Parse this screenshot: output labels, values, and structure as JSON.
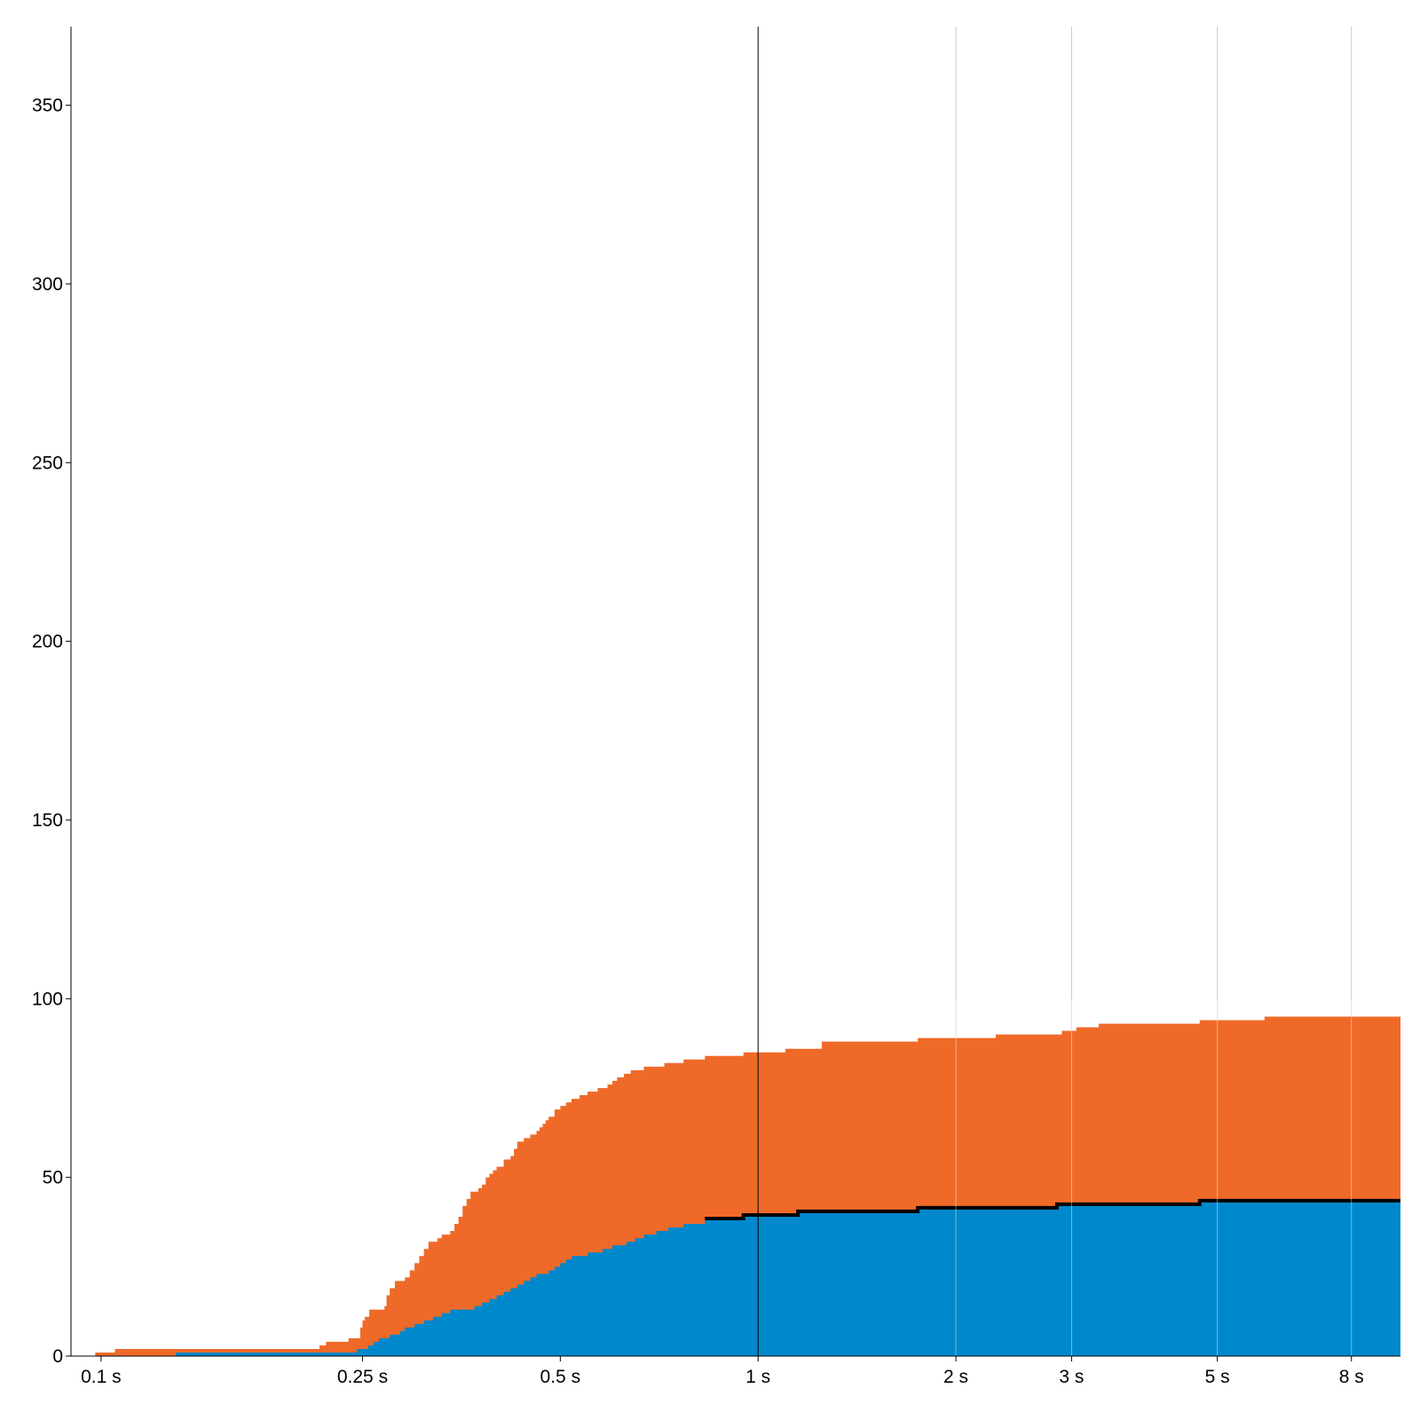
{
  "chart_data": {
    "type": "area",
    "x_scale": "log",
    "x_unit": "s",
    "xlim": [
      0.09,
      9.5
    ],
    "ylim": [
      0,
      372
    ],
    "grid": true,
    "y_ticks": [
      0,
      50,
      100,
      150,
      200,
      250,
      300,
      350
    ],
    "y_tick_labels": [
      "0",
      "50",
      "100",
      "150",
      "200",
      "250",
      "300",
      "350"
    ],
    "x_ticks": [
      0.1,
      0.25,
      0.5,
      1,
      2,
      3,
      5,
      8
    ],
    "x_tick_labels": [
      "0.1 s",
      "0.25 s",
      "0.5 s",
      "1 s",
      "2 s",
      "3 s",
      "5 s",
      "8 s"
    ],
    "highlight_x": 1,
    "series": [
      {
        "color": "#0088cc",
        "points": [
          [
            0.098,
            0
          ],
          [
            0.13,
            1
          ],
          [
            0.245,
            2
          ],
          [
            0.255,
            3
          ],
          [
            0.26,
            4
          ],
          [
            0.265,
            5
          ],
          [
            0.275,
            6
          ],
          [
            0.285,
            7
          ],
          [
            0.29,
            8
          ],
          [
            0.3,
            9
          ],
          [
            0.31,
            10
          ],
          [
            0.32,
            11
          ],
          [
            0.33,
            12
          ],
          [
            0.34,
            13
          ],
          [
            0.37,
            14
          ],
          [
            0.38,
            15
          ],
          [
            0.39,
            16
          ],
          [
            0.4,
            17
          ],
          [
            0.41,
            18
          ],
          [
            0.42,
            19
          ],
          [
            0.43,
            20
          ],
          [
            0.44,
            21
          ],
          [
            0.45,
            22
          ],
          [
            0.46,
            23
          ],
          [
            0.48,
            24
          ],
          [
            0.49,
            25
          ],
          [
            0.5,
            26
          ],
          [
            0.51,
            27
          ],
          [
            0.52,
            28
          ],
          [
            0.55,
            29
          ],
          [
            0.58,
            30
          ],
          [
            0.6,
            31
          ],
          [
            0.63,
            32
          ],
          [
            0.65,
            33
          ],
          [
            0.67,
            34
          ],
          [
            0.7,
            35
          ],
          [
            0.73,
            36
          ],
          [
            0.77,
            37
          ],
          [
            0.83,
            38
          ],
          [
            0.95,
            39
          ],
          [
            1.15,
            40
          ],
          [
            1.75,
            41
          ],
          [
            2.85,
            42
          ],
          [
            4.7,
            43
          ],
          [
            9.5,
            43
          ]
        ]
      },
      {
        "color": "#ef6a28",
        "points": [
          [
            0.098,
            1
          ],
          [
            0.105,
            2
          ],
          [
            0.215,
            3
          ],
          [
            0.22,
            4
          ],
          [
            0.238,
            5
          ],
          [
            0.248,
            8
          ],
          [
            0.25,
            10
          ],
          [
            0.252,
            11
          ],
          [
            0.256,
            13
          ],
          [
            0.27,
            14
          ],
          [
            0.272,
            17
          ],
          [
            0.275,
            19
          ],
          [
            0.28,
            21
          ],
          [
            0.29,
            22
          ],
          [
            0.295,
            24
          ],
          [
            0.3,
            26
          ],
          [
            0.305,
            28
          ],
          [
            0.31,
            30
          ],
          [
            0.315,
            32
          ],
          [
            0.325,
            33
          ],
          [
            0.33,
            34
          ],
          [
            0.34,
            35
          ],
          [
            0.345,
            37
          ],
          [
            0.35,
            39
          ],
          [
            0.355,
            42
          ],
          [
            0.36,
            44
          ],
          [
            0.365,
            46
          ],
          [
            0.375,
            47
          ],
          [
            0.38,
            48
          ],
          [
            0.385,
            50
          ],
          [
            0.39,
            51
          ],
          [
            0.395,
            52
          ],
          [
            0.4,
            53
          ],
          [
            0.41,
            55
          ],
          [
            0.42,
            56
          ],
          [
            0.425,
            58
          ],
          [
            0.43,
            60
          ],
          [
            0.44,
            61
          ],
          [
            0.45,
            62
          ],
          [
            0.46,
            63
          ],
          [
            0.465,
            64
          ],
          [
            0.47,
            65
          ],
          [
            0.475,
            66
          ],
          [
            0.48,
            67
          ],
          [
            0.49,
            69
          ],
          [
            0.5,
            70
          ],
          [
            0.51,
            71
          ],
          [
            0.52,
            72
          ],
          [
            0.535,
            73
          ],
          [
            0.55,
            74
          ],
          [
            0.57,
            75
          ],
          [
            0.59,
            76
          ],
          [
            0.6,
            77
          ],
          [
            0.61,
            78
          ],
          [
            0.625,
            79
          ],
          [
            0.64,
            80
          ],
          [
            0.67,
            81
          ],
          [
            0.72,
            82
          ],
          [
            0.77,
            83
          ],
          [
            0.83,
            84
          ],
          [
            0.95,
            85
          ],
          [
            1.1,
            86
          ],
          [
            1.25,
            88
          ],
          [
            1.75,
            89
          ],
          [
            2.3,
            90
          ],
          [
            2.9,
            91
          ],
          [
            3.05,
            92
          ],
          [
            3.3,
            93
          ],
          [
            4.7,
            94
          ],
          [
            5.9,
            95
          ],
          [
            9.5,
            95
          ]
        ]
      }
    ]
  }
}
